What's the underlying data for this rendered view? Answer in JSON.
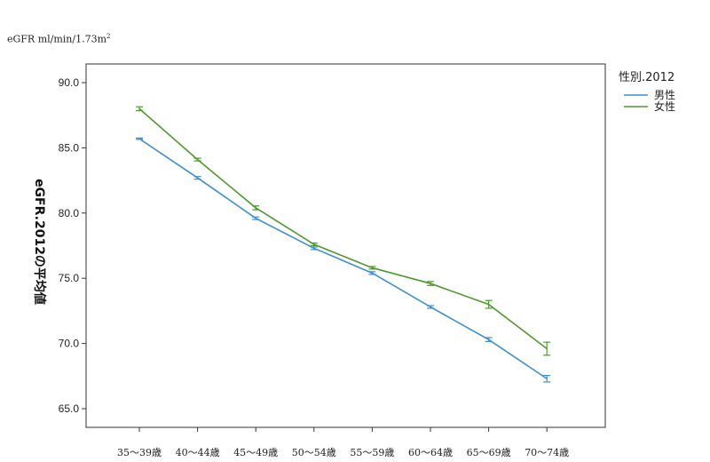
{
  "unit_label": "eGFR ml/min/1.73m",
  "unit_label_sup": "2",
  "chart_data": {
    "type": "line",
    "ylabel": "eGFR.2012の平均値",
    "xlabel": "",
    "ylim": [
      64,
      92
    ],
    "yticks": [
      "65.0",
      "70.0",
      "75.0",
      "80.0",
      "85.0",
      "90.0"
    ],
    "ytick_values": [
      65,
      70,
      75,
      80,
      85,
      90
    ],
    "grid": false,
    "legend_title": "性別.2012",
    "legend_position": "top-right",
    "categories": [
      "35～39歳",
      "40～44歳",
      "45～49歳",
      "50～54歳",
      "55～59歳",
      "60～64歳",
      "65～69歳",
      "70～74歳"
    ],
    "series": [
      {
        "name": "男性",
        "color": "#3a8fd6",
        "values": [
          85.7,
          82.7,
          79.6,
          77.3,
          75.4,
          72.8,
          70.3,
          67.3
        ],
        "err": [
          0.05,
          0.1,
          0.1,
          0.1,
          0.1,
          0.1,
          0.15,
          0.25
        ]
      },
      {
        "name": "女性",
        "color": "#4f9a2e",
        "values": [
          88.0,
          84.1,
          80.4,
          77.6,
          75.8,
          74.6,
          73.0,
          69.6
        ],
        "err": [
          0.15,
          0.1,
          0.15,
          0.1,
          0.1,
          0.15,
          0.3,
          0.5
        ]
      }
    ]
  }
}
